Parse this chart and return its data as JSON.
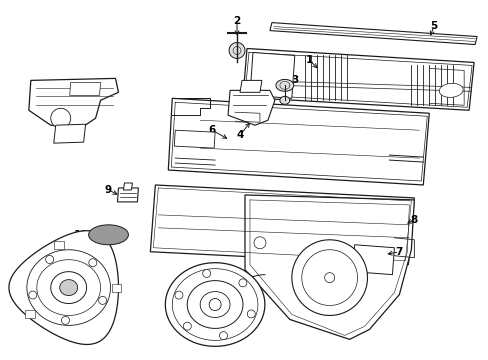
{
  "background_color": "#ffffff",
  "fig_width": 4.89,
  "fig_height": 3.6,
  "dpi": 100,
  "line_color": "#1a1a1a",
  "font_size": 7.5
}
